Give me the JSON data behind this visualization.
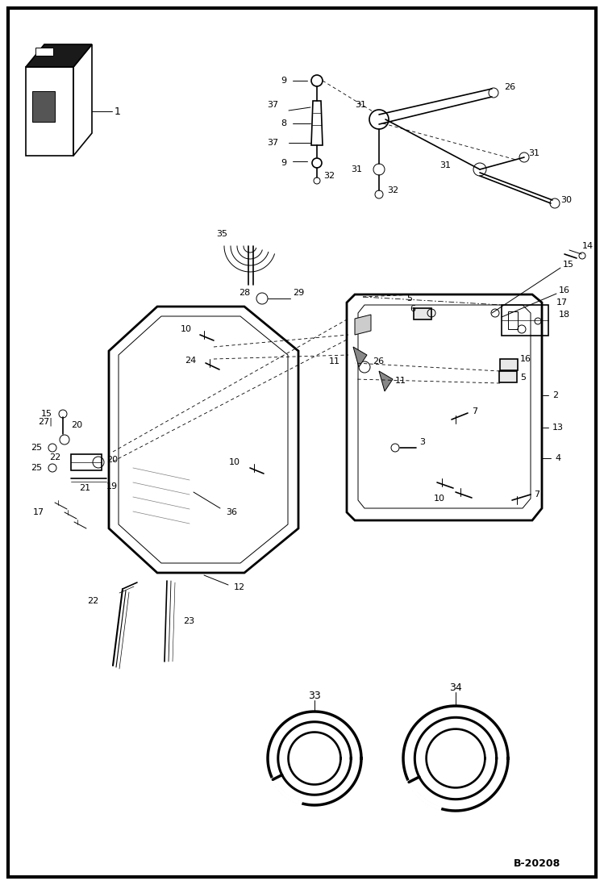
{
  "bg_color": "#ffffff",
  "line_color": "#000000",
  "text_color": "#000000",
  "figure_size": [
    7.49,
    10.97
  ],
  "dpi": 100,
  "watermark": "B-20208"
}
